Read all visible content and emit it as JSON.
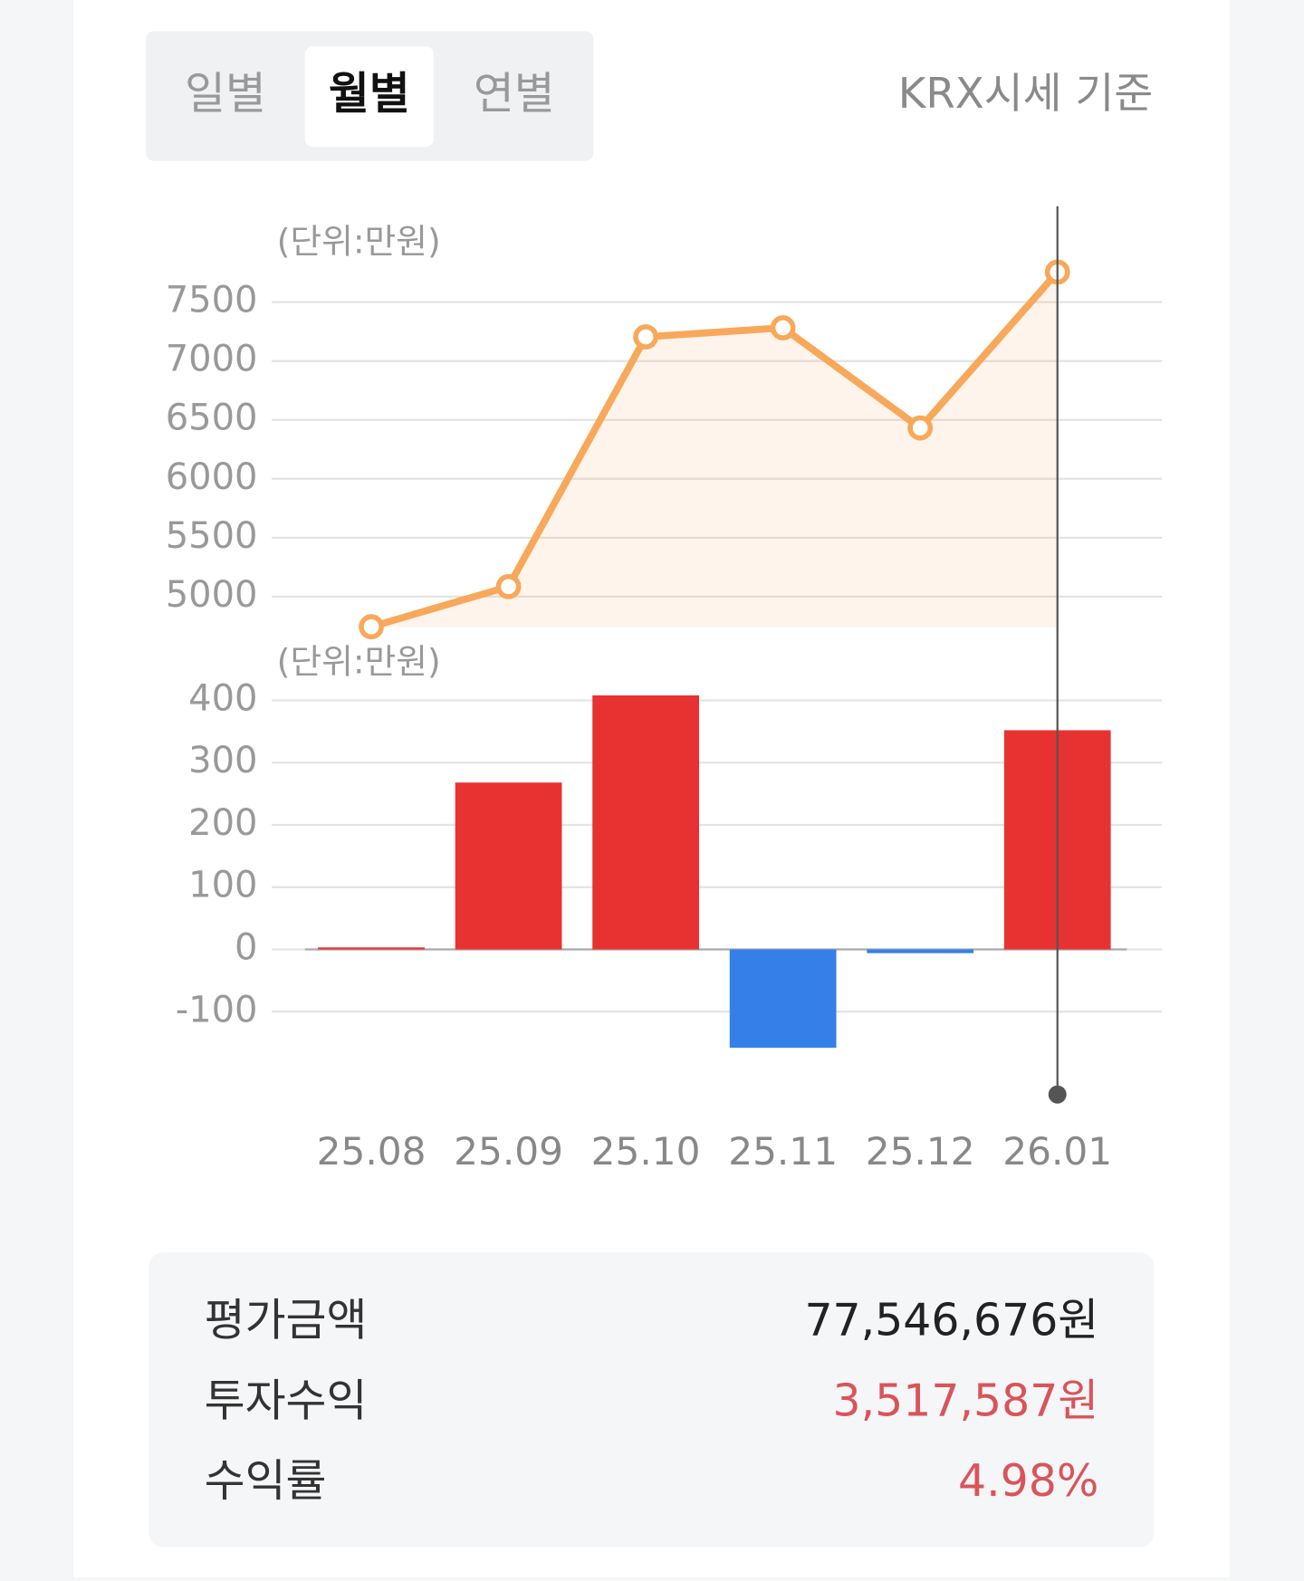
{
  "tabs": [
    "일별",
    "월별",
    "연별"
  ],
  "active_tab": 1,
  "source_note": "KRX시세 기준",
  "chart_data": [
    {
      "type": "line",
      "unit_label": "(단위:만원)",
      "categories": [
        "25.08",
        "25.09",
        "25.10",
        "25.11",
        "25.12",
        "26.01"
      ],
      "values": [
        4744,
        5085,
        7205,
        7282,
        6432,
        7755
      ],
      "color": "#f8a85a",
      "ylim": [
        4700,
        7800
      ],
      "yticks": [
        5000,
        5500,
        6000,
        6500,
        7000,
        7500
      ],
      "grid": true,
      "selected_index": 5
    },
    {
      "type": "bar",
      "unit_label": "(단위:만원)",
      "categories": [
        "25.08",
        "25.09",
        "25.10",
        "25.11",
        "25.12",
        "26.01"
      ],
      "values": [
        1,
        268,
        408,
        -158,
        -6,
        352
      ],
      "positive_color": "#e83232",
      "negative_color": "#3580e8",
      "ylim": [
        -170,
        410
      ],
      "yticks": [
        -100,
        0,
        100,
        200,
        300,
        400
      ],
      "grid": true,
      "selected_index": 5
    }
  ],
  "summary": {
    "rows": [
      {
        "label": "평가금액",
        "value": "77,546,676원",
        "color": "#222222"
      },
      {
        "label": "투자수익",
        "value": "3,517,587원",
        "color": "#d9545a"
      },
      {
        "label": "수익률",
        "value": "4.98%",
        "color": "#d9545a"
      }
    ]
  }
}
